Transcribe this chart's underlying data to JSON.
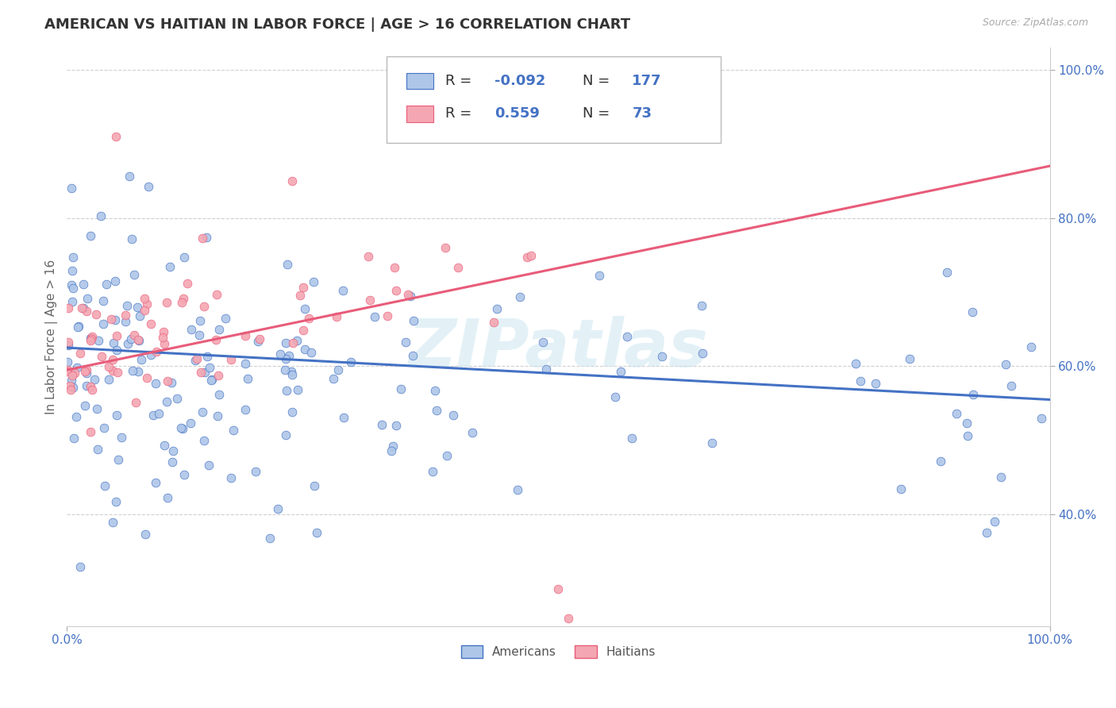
{
  "title": "AMERICAN VS HAITIAN IN LABOR FORCE | AGE > 16 CORRELATION CHART",
  "source_text": "Source: ZipAtlas.com",
  "ylabel": "In Labor Force | Age > 16",
  "x_min": 0.0,
  "x_max": 1.0,
  "y_min": 0.25,
  "y_max": 1.03,
  "x_tick_labels": [
    "0.0%",
    "100.0%"
  ],
  "x_tick_pos": [
    0.0,
    1.0
  ],
  "y_ticks": [
    0.4,
    0.6,
    0.8,
    1.0
  ],
  "y_tick_labels": [
    "40.0%",
    "60.0%",
    "80.0%",
    "100.0%"
  ],
  "american_color": "#aec6e8",
  "haitian_color": "#f4a7b2",
  "american_line_color": "#4472c4",
  "haitian_line_color": "#e85c7a",
  "R_american": -0.092,
  "N_american": 177,
  "R_haitian": 0.559,
  "N_haitian": 73,
  "watermark": "ZIPatlas",
  "background_color": "#ffffff",
  "grid_color": "#d0d0d0",
  "title_color": "#333333",
  "axis_label_color": "#666666",
  "tick_label_color": "#4472c4",
  "legend_R_color": "#4472c4",
  "am_line_start_y": 0.625,
  "am_line_end_y": 0.555,
  "ha_line_start_y": 0.595,
  "ha_line_end_y": 0.87
}
